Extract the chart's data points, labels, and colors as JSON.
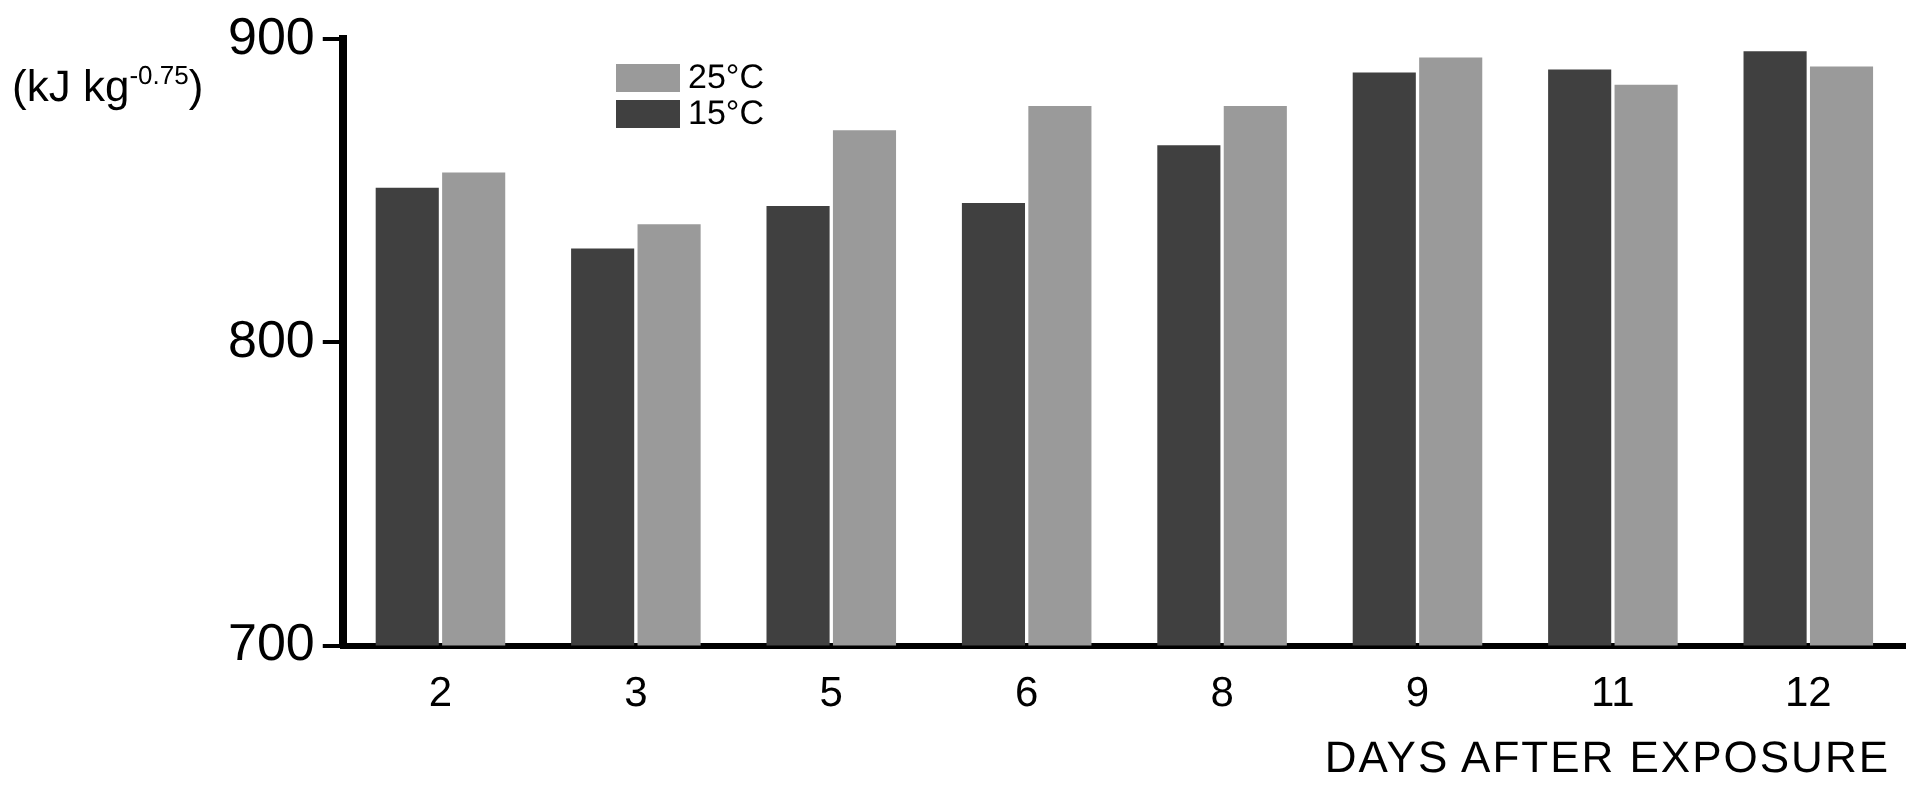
{
  "chart_data": {
    "type": "bar",
    "xlabel": "DAYS AFTER EXPOSURE",
    "ylabel": "(kJ kg$^{-0.75}$)",
    "categories": [
      "2",
      "3",
      "5",
      "6",
      "8",
      "9",
      "11",
      "12"
    ],
    "series": [
      {
        "name": "15°C",
        "color": "#404040",
        "values": [
          851,
          831,
          845,
          846,
          865,
          889,
          890,
          896
        ]
      },
      {
        "name": "25°C",
        "color": "#9a9a9a",
        "values": [
          856,
          839,
          870,
          878,
          878,
          894,
          885,
          891
        ]
      }
    ],
    "ylim": [
      700,
      900
    ],
    "yticks": [
      700,
      800,
      900
    ],
    "grid": false,
    "legend": "top left"
  }
}
